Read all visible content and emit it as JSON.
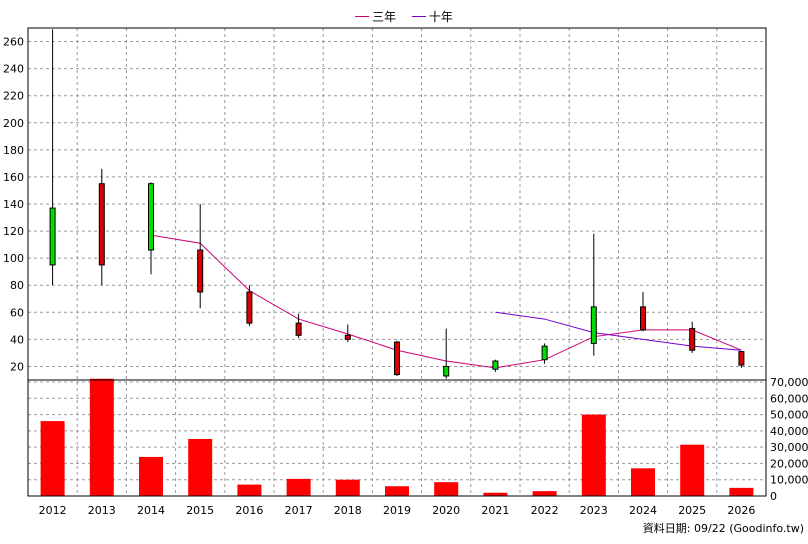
{
  "chart_data": {
    "type": "candlestick",
    "legend": [
      {
        "name": "三年",
        "color": "#cc0077"
      },
      {
        "name": "十年",
        "color": "#7700cc"
      }
    ],
    "years": [
      "2012",
      "2013",
      "2014",
      "2015",
      "2016",
      "2017",
      "2018",
      "2019",
      "2020",
      "2021",
      "2022",
      "2023",
      "2024",
      "2025",
      "2026"
    ],
    "price_axis": {
      "min": 10,
      "max": 270,
      "ticks": [
        20,
        40,
        60,
        80,
        100,
        120,
        140,
        160,
        180,
        200,
        220,
        240,
        260
      ]
    },
    "volume_axis": {
      "min": 0,
      "max": 70000,
      "ticks": [
        0,
        10000,
        20000,
        30000,
        40000,
        50000,
        60000,
        70000
      ],
      "tick_labels": [
        "0",
        "10,000",
        "20,000",
        "30,000",
        "40,000",
        "50,000",
        "60,000",
        "70,000"
      ]
    },
    "candles": [
      {
        "year": "2012",
        "open": 95,
        "close": 137,
        "high": 269,
        "low": 80
      },
      {
        "year": "2013",
        "open": 155,
        "close": 95,
        "high": 166,
        "low": 80
      },
      {
        "year": "2014",
        "open": 106,
        "close": 155,
        "high": 156,
        "low": 88
      },
      {
        "year": "2015",
        "open": 106,
        "close": 75,
        "high": 140,
        "low": 63
      },
      {
        "year": "2016",
        "open": 75,
        "close": 52,
        "high": 80,
        "low": 50
      },
      {
        "year": "2017",
        "open": 52,
        "close": 43,
        "high": 59,
        "low": 41
      },
      {
        "year": "2018",
        "open": 43,
        "close": 40,
        "high": 51,
        "low": 38
      },
      {
        "year": "2019",
        "open": 38,
        "close": 14,
        "high": 39,
        "low": 13
      },
      {
        "year": "2020",
        "open": 13,
        "close": 20,
        "high": 48,
        "low": 11
      },
      {
        "year": "2021",
        "open": 18,
        "close": 24,
        "high": 25,
        "low": 16
      },
      {
        "year": "2022",
        "open": 25,
        "close": 35,
        "high": 37,
        "low": 22
      },
      {
        "year": "2023",
        "open": 37,
        "close": 64,
        "high": 118,
        "low": 28
      },
      {
        "year": "2024",
        "open": 64,
        "close": 47,
        "high": 75,
        "low": 46
      },
      {
        "year": "2025",
        "open": 48,
        "close": 32,
        "high": 53,
        "low": 30
      },
      {
        "year": "2026",
        "open": 31,
        "close": 21,
        "high": 31,
        "low": 19
      }
    ],
    "ma_3yr": [
      null,
      null,
      117,
      111,
      76,
      55,
      44,
      32,
      24,
      19,
      25,
      42,
      47,
      47,
      32
    ],
    "ma_10yr": [
      null,
      null,
      null,
      null,
      null,
      null,
      null,
      null,
      null,
      60,
      55,
      45,
      40,
      35,
      32
    ],
    "volumes": [
      46000,
      72000,
      24000,
      35000,
      7000,
      10500,
      10000,
      6000,
      8500,
      2000,
      3000,
      50000,
      17000,
      31500,
      5000
    ],
    "footer_note": "資料日期: 09/22  (Goodinfo.tw)"
  }
}
